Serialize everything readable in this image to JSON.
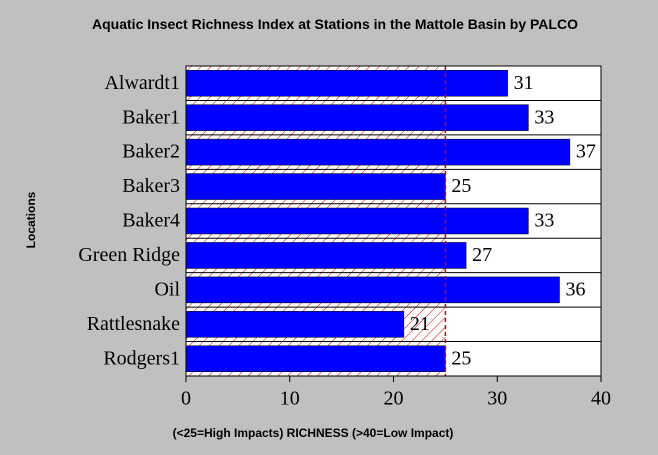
{
  "chart_data": {
    "type": "bar",
    "orientation": "horizontal",
    "title": "Aquatic Insect Richness Index at Stations in the Mattole Basin by PALCO",
    "x_label": "(<25=High Impacts)  RICHNESS (>40=Low Impact)",
    "y_label": "Locations",
    "categories": [
      "Alwardt1",
      "Baker1",
      "Baker2",
      "Baker3",
      "Baker4",
      "Green Ridge",
      "Oil",
      "Rattlesnake",
      "Rodgers1"
    ],
    "values": [
      31,
      33,
      37,
      25,
      33,
      27,
      36,
      21,
      25
    ],
    "color": "#0000ff",
    "threshold": 25,
    "threshold_color": "#cc0000",
    "xlim": [
      0,
      40
    ],
    "xticks": [
      0,
      10,
      20,
      30,
      40
    ]
  }
}
